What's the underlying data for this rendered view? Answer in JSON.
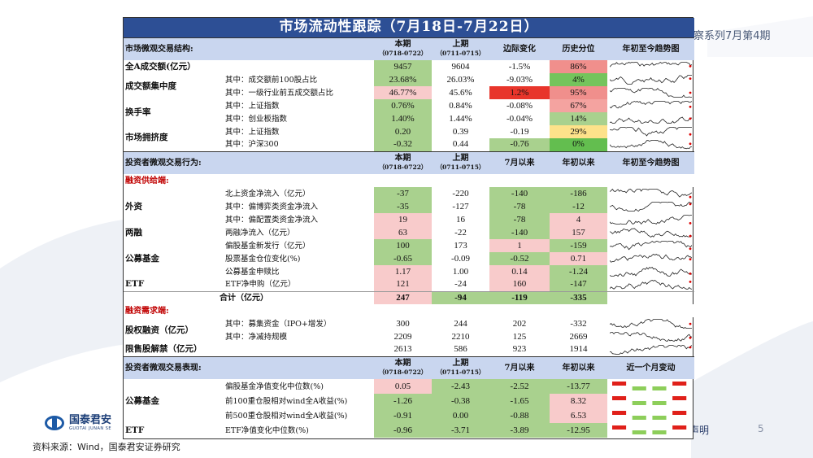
{
  "background": {
    "header_text": "观察系列7月第4期",
    "disclaimer": "声明",
    "page_number": "5",
    "source": "资料来源：Wind，国泰君安证券研究",
    "logo_cn": "国泰君安",
    "logo_en": "GUOTAI JUNAN SE"
  },
  "title": "市场流动性跟踪（7月18日-7月22日）",
  "section1": {
    "header": {
      "label": "市场微观交易结构:",
      "cur": "本期",
      "cur_range": "（0718-0722）",
      "prev": "上期",
      "prev_range": "（0711-0715）",
      "col3": "边际变化",
      "col4": "历史分位",
      "col5": "年初至今趋势图"
    },
    "rows": [
      {
        "cat": "全A成交额(亿元）",
        "sub": "",
        "cur": "9457",
        "prev": "9604",
        "chg": "-1.5%",
        "pct": "86%",
        "cur_c": "g",
        "prev_c": "",
        "chg_c": "",
        "pct_c": "#f08f8c"
      },
      {
        "cat": "成交额集中度",
        "sub": "其中：成交额前100股占比",
        "cur": "23.68%",
        "prev": "26.03%",
        "chg": "-9.03%",
        "pct": "4%",
        "cur_c": "g",
        "prev_c": "",
        "chg_c": "",
        "pct_c": "#74c45c"
      },
      {
        "cat": "",
        "sub": "其中：一级行业前五成交额占比",
        "cur": "46.77%",
        "prev": "45.6%",
        "chg": "1.2%",
        "pct": "95%",
        "cur_c": "lp",
        "prev_c": "",
        "chg_c": "rd",
        "pct_c": "#f08f8c"
      },
      {
        "cat": "换手率",
        "sub": "其中：上证指数",
        "cur": "0.76%",
        "prev": "0.84%",
        "chg": "-0.08%",
        "pct": "67%",
        "cur_c": "g",
        "prev_c": "",
        "chg_c": "",
        "pct_c": "#f4a3a0"
      },
      {
        "cat": "",
        "sub": "其中：创业板指数",
        "cur": "1.40%",
        "prev": "1.44%",
        "chg": "-0.04%",
        "pct": "14%",
        "cur_c": "g",
        "prev_c": "",
        "chg_c": "",
        "pct_c": "#a9d18e"
      },
      {
        "cat": "市场拥挤度",
        "sub": "其中：上证指数",
        "cur": "0.20",
        "prev": "0.39",
        "chg": "-0.19",
        "pct": "29%",
        "cur_c": "g",
        "prev_c": "",
        "chg_c": "",
        "pct_c": "#fde28a"
      },
      {
        "cat": "",
        "sub": "其中：沪深300",
        "cur": "-0.32",
        "prev": "0.44",
        "chg": "-0.76",
        "pct": "0%",
        "cur_c": "g",
        "prev_c": "",
        "chg_c": "g",
        "pct_c": "#63be4f"
      }
    ]
  },
  "section2": {
    "header": {
      "label": "投资者微观交易行为:",
      "cur": "本期",
      "cur_range": "（0718-0722）",
      "prev": "上期",
      "prev_range": "（0711-0715）",
      "col3": "7月以来",
      "col4": "年初以来",
      "col5": "年初至今趋势图"
    },
    "supply_label": "融资供给端:",
    "supply_rows": [
      {
        "cat": "外资",
        "sub": "北上资金净流入（亿元）",
        "cur": "-37",
        "prev": "-220",
        "chg": "-140",
        "pct": "-186",
        "cur_c": "g",
        "chg_c": "g",
        "pct_c": "g"
      },
      {
        "cat": "",
        "sub": "其中：偏博弈类资金净流入",
        "cur": "-35",
        "prev": "-127",
        "chg": "-78",
        "pct": "-12",
        "cur_c": "g",
        "chg_c": "g",
        "pct_c": "g"
      },
      {
        "cat": "",
        "sub": "其中：偏配置类资金净流入",
        "cur": "19",
        "prev": "16",
        "chg": "-78",
        "pct": "4",
        "cur_c": "lp",
        "chg_c": "g",
        "pct_c": "lp"
      },
      {
        "cat": "两融",
        "sub": "两融净流入（亿元）",
        "cur": "63",
        "prev": "-22",
        "chg": "-140",
        "pct": "157",
        "cur_c": "lp",
        "chg_c": "g",
        "pct_c": "lp"
      },
      {
        "cat": "公募基金",
        "sub": "偏股基金新发行（亿元）",
        "cur": "100",
        "prev": "173",
        "chg": "1",
        "pct": "-159",
        "cur_c": "g",
        "chg_c": "lp",
        "pct_c": "g"
      },
      {
        "cat": "",
        "sub": "股票基金仓位变化(%)",
        "cur": "-0.65",
        "prev": "-0.09",
        "chg": "-0.52",
        "pct": "0.71",
        "cur_c": "g",
        "chg_c": "g",
        "pct_c": "lp"
      },
      {
        "cat": "",
        "sub": "公募基金申赎比",
        "cur": "1.17",
        "prev": "1.00",
        "chg": "0.14",
        "pct": "-1.24",
        "cur_c": "lp",
        "chg_c": "lp",
        "pct_c": "g"
      },
      {
        "cat": "ETF",
        "sub": "ETF净申购（亿元）",
        "cur": "121",
        "prev": "-24",
        "chg": "160",
        "pct": "-147",
        "cur_c": "lp",
        "chg_c": "lp",
        "pct_c": "g"
      }
    ],
    "total": {
      "label": "合计（亿元）",
      "cur": "247",
      "prev": "-94",
      "chg": "-119",
      "pct": "-335",
      "cur_c": "lp",
      "prev_c": "g",
      "chg_c": "g",
      "pct_c": "g"
    },
    "demand_label": "融资需求端:",
    "demand_rows": [
      {
        "cat": "股权融资（亿元）",
        "sub": "其中：募集资金（IPO+增发）",
        "cur": "300",
        "prev": "244",
        "chg": "202",
        "pct": "-332"
      },
      {
        "cat": "",
        "sub": "其中：净减持规模",
        "cur": "2209",
        "prev": "2210",
        "chg": "125",
        "pct": "2669"
      },
      {
        "cat": "限售股解禁（亿元）",
        "sub": "",
        "cur": "2613",
        "prev": "586",
        "chg": "923",
        "pct": "1914"
      }
    ]
  },
  "section3": {
    "header": {
      "label": "投资者微观交易表现:",
      "cur": "本期",
      "cur_range": "（0718-0722）",
      "prev": "上期",
      "prev_range": "（0711-0715）",
      "col3": "7月以来",
      "col4": "年初以来",
      "col5": "近一个月变动"
    },
    "rows": [
      {
        "cat": "公募基金",
        "sub": "偏股基金净值变化中位数(%)",
        "cur": "0.05",
        "prev": "-2.43",
        "chg": "-2.52",
        "pct": "-13.77",
        "cur_c": "lp",
        "prev_c": "g",
        "chg_c": "g",
        "pct_c": "g"
      },
      {
        "cat": "",
        "sub": "前100重仓股相对wind全A收益(%)",
        "cur": "-1.26",
        "prev": "-0.38",
        "chg": "-1.65",
        "pct": "8.32",
        "cur_c": "g",
        "prev_c": "g",
        "chg_c": "g",
        "pct_c": "lp"
      },
      {
        "cat": "",
        "sub": "前500重仓股相对wind全A收益(%)",
        "cur": "-0.91",
        "prev": "0.00",
        "chg": "-0.88",
        "pct": "6.53",
        "cur_c": "g",
        "prev_c": "g",
        "chg_c": "g",
        "pct_c": "lp"
      },
      {
        "cat": "ETF",
        "sub": "ETF净值变化中位数(%)",
        "cur": "-0.96",
        "prev": "-3.71",
        "chg": "-3.89",
        "pct": "-12.95",
        "cur_c": "g",
        "prev_c": "g",
        "chg_c": "g",
        "pct_c": "g"
      }
    ],
    "heatmap": [
      [
        "red",
        "green",
        "green",
        "red"
      ],
      [
        "red",
        "green",
        "green",
        "red"
      ],
      [
        "red",
        "green",
        "green",
        "red"
      ],
      [
        "red",
        "green",
        "green",
        "red"
      ]
    ]
  },
  "colors": {
    "header_bg": "#2d4f95",
    "subheader_bg": "#c9d6ef",
    "green": "#a9d18e",
    "light_pink": "#f8cbcb",
    "red": "#e8352b"
  }
}
